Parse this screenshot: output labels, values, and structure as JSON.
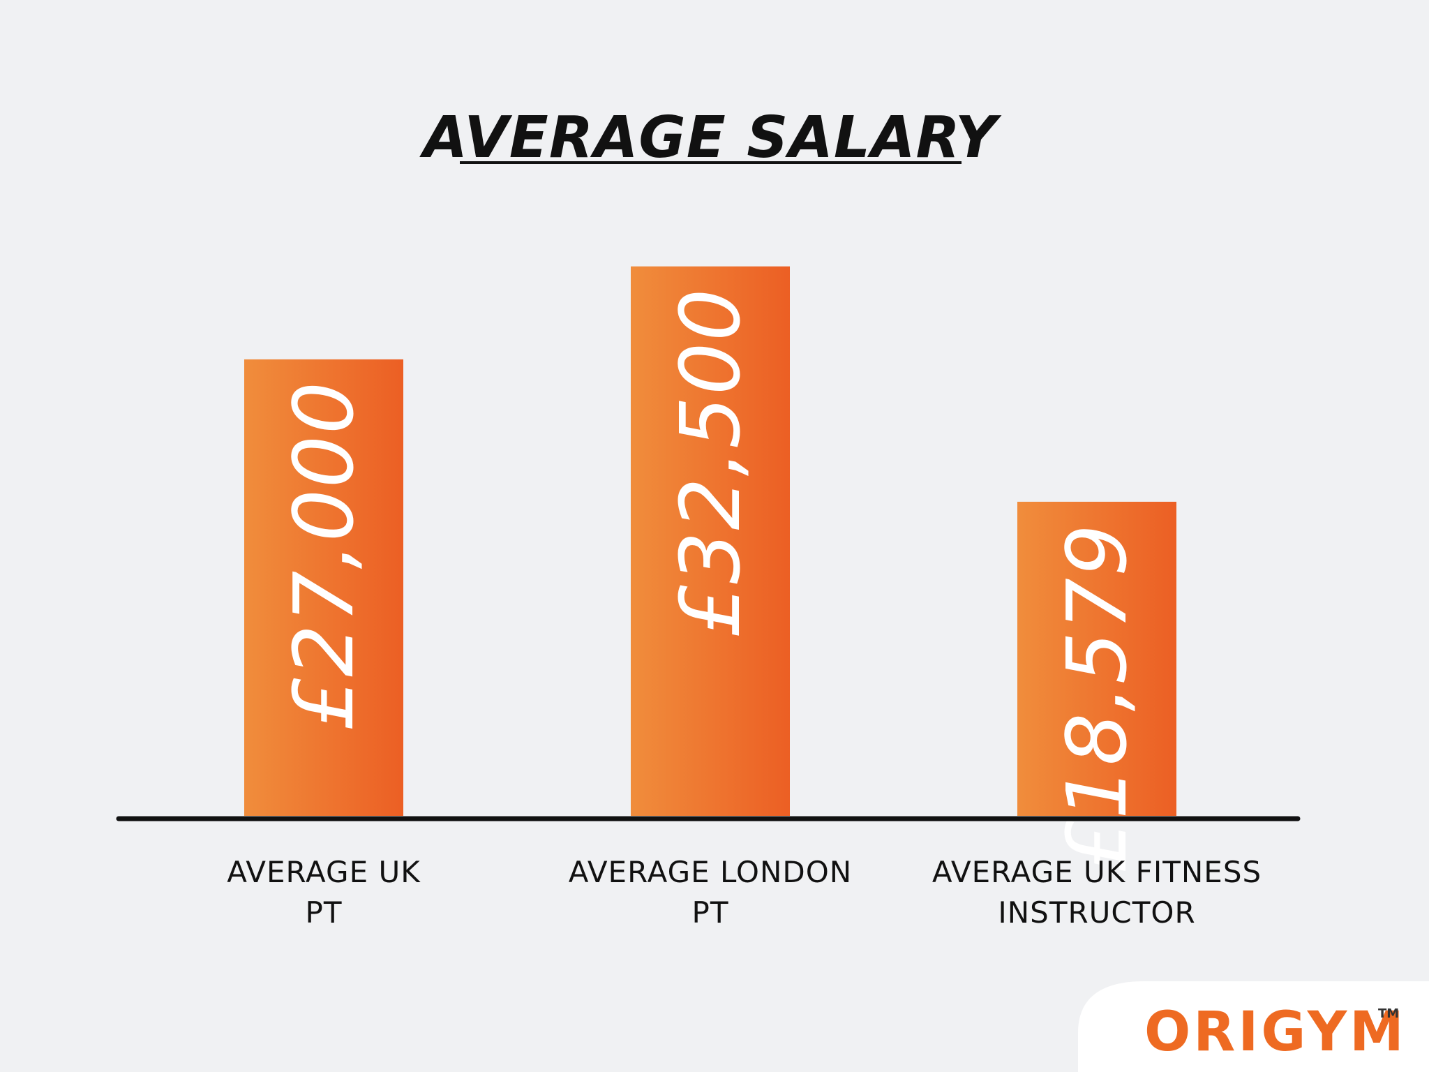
{
  "chart_data": {
    "type": "bar",
    "title": "AVERAGE SALARY",
    "categories": [
      [
        "AVERAGE UK",
        "PT"
      ],
      [
        "AVERAGE LONDON",
        "PT"
      ],
      [
        "AVERAGE UK FITNESS",
        "INSTRUCTOR"
      ]
    ],
    "values": [
      27000,
      32500,
      18579
    ],
    "value_labels": [
      "£27,000",
      "£32,500",
      "£18,579"
    ],
    "ylim": [
      0,
      40000
    ],
    "grid": false,
    "legend": "none",
    "colors": {
      "bar_start": "#f08d3c",
      "bar_end": "#ec5f24",
      "axis": "#111111",
      "title": "#111111"
    }
  },
  "brand": {
    "logo_text": "ORIGYM",
    "trademark": "TM",
    "color": "#ee6a22"
  }
}
